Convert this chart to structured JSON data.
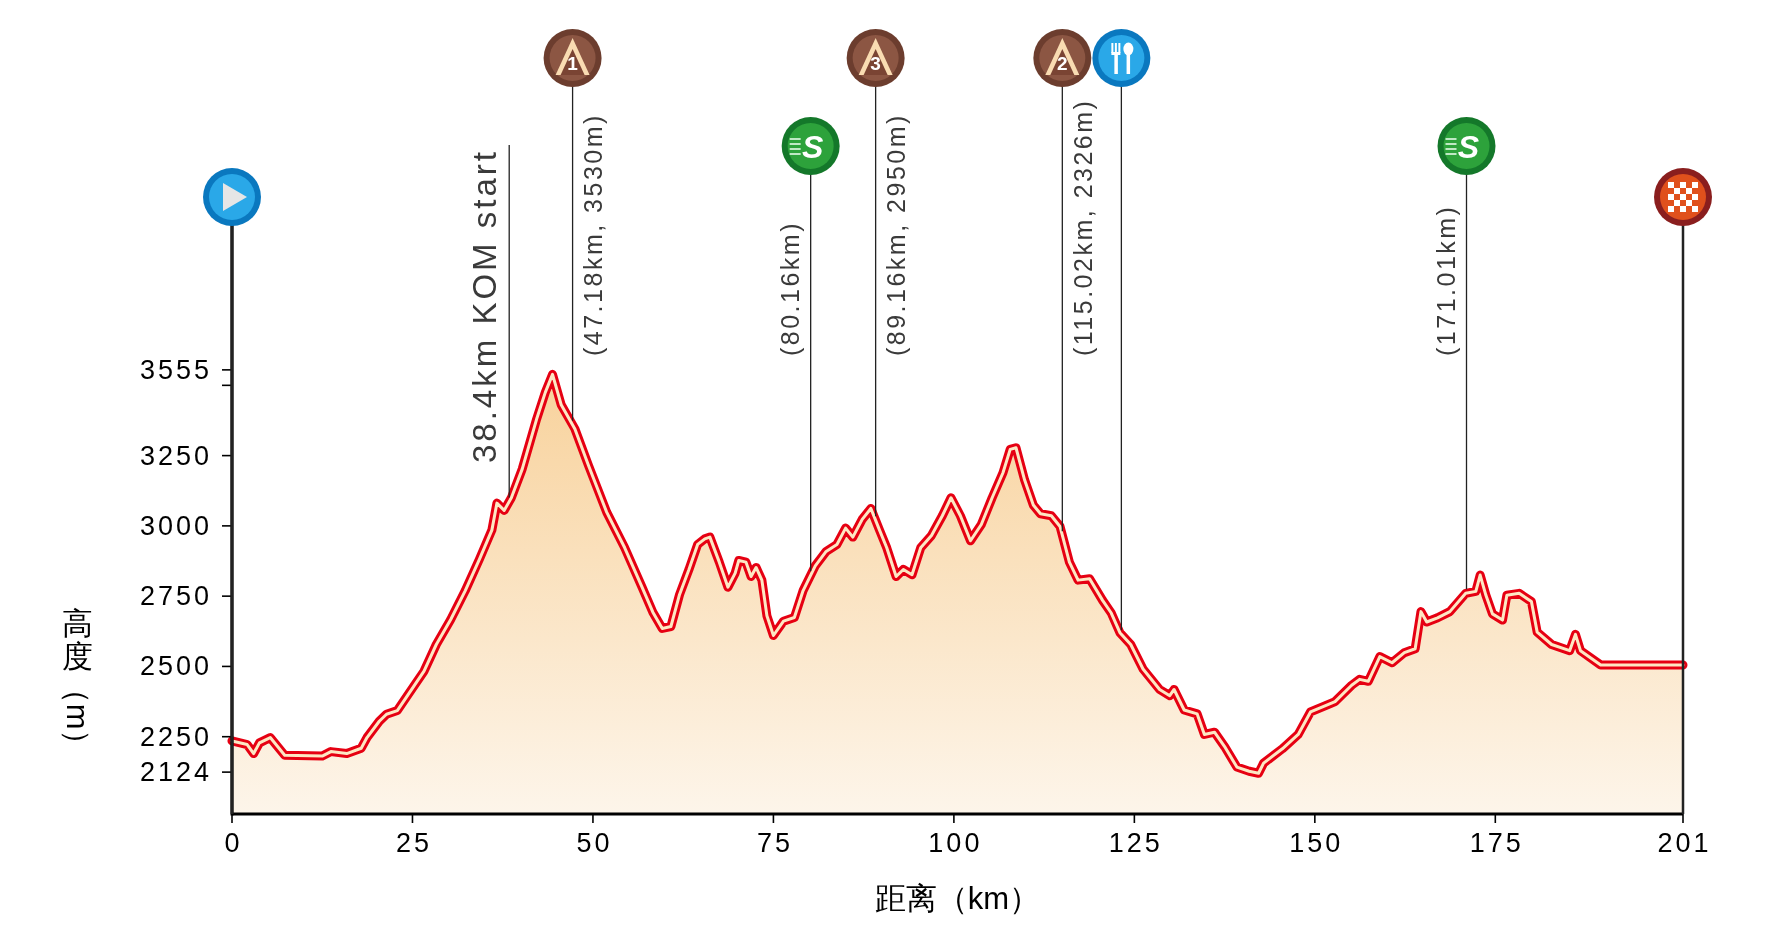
{
  "chart_data": {
    "type": "area",
    "xlabel": "距离（km）",
    "ylabel": "高度（m）",
    "x": [
      0,
      2.1,
      3.0,
      3.8,
      5.3,
      7.3,
      12.5,
      13.7,
      15.9,
      17.9,
      18.7,
      20.4,
      21.4,
      22.9,
      24.4,
      26.6,
      28.3,
      30.3,
      32.3,
      34.3,
      36.0,
      36.7,
      37.7,
      38.7,
      40.2,
      42.2,
      43.4,
      44.4,
      45.6,
      47.5,
      49.4,
      51.9,
      54.4,
      56.8,
      58.3,
      59.6,
      60.8,
      62.0,
      63.3,
      64.5,
      65.5,
      66.2,
      67.5,
      68.7,
      69.7,
      70.2,
      71.2,
      71.9,
      72.6,
      73.4,
      74.1,
      75.0,
      76.4,
      77.9,
      79.1,
      80.8,
      82.3,
      83.8,
      85.0,
      86.0,
      87.3,
      88.5,
      89.7,
      90.7,
      92.0,
      93.0,
      94.2,
      95.4,
      96.9,
      98.4,
      99.6,
      100.9,
      102.3,
      103.8,
      105.3,
      106.8,
      107.8,
      108.6,
      109.8,
      111.0,
      112.0,
      113.5,
      114.7,
      116.0,
      117.2,
      118.8,
      120.6,
      121.8,
      123.0,
      124.5,
      126.2,
      128.5,
      129.9,
      130.5,
      131.9,
      133.7,
      134.7,
      136.1,
      137.5,
      139.2,
      140.9,
      142.2,
      142.9,
      145.5,
      147.7,
      149.4,
      151.4,
      152.8,
      155.1,
      156.2,
      157.4,
      159.0,
      160.7,
      162.4,
      163.9,
      164.7,
      165.5,
      167.0,
      168.7,
      170.9,
      172.3,
      172.9,
      173.7,
      174.6,
      176.0,
      176.6,
      178.3,
      180.0,
      180.8,
      182.8,
      185.3,
      186.1,
      186.8,
      189.6,
      201
    ],
    "values": [
      2235,
      2222,
      2190,
      2228,
      2247,
      2184,
      2181,
      2197,
      2190,
      2209,
      2247,
      2305,
      2330,
      2343,
      2400,
      2483,
      2578,
      2667,
      2769,
      2883,
      2985,
      3081,
      3055,
      3100,
      3202,
      3380,
      3475,
      3539,
      3431,
      3345,
      3214,
      3049,
      2922,
      2782,
      2693,
      2635,
      2642,
      2756,
      2845,
      2934,
      2954,
      2960,
      2871,
      2782,
      2832,
      2877,
      2871,
      2820,
      2852,
      2807,
      2680,
      2610,
      2661,
      2674,
      2769,
      2858,
      2909,
      2934,
      2992,
      2960,
      3023,
      3062,
      2985,
      2922,
      2820,
      2845,
      2826,
      2922,
      2966,
      3036,
      3100,
      3036,
      2947,
      3005,
      3100,
      3189,
      3272,
      3278,
      3163,
      3074,
      3043,
      3036,
      2998,
      2871,
      2807,
      2812,
      2735,
      2690,
      2620,
      2578,
      2491,
      2418,
      2396,
      2418,
      2345,
      2331,
      2258,
      2266,
      2215,
      2142,
      2127,
      2120,
      2156,
      2207,
      2258,
      2338,
      2360,
      2375,
      2433,
      2454,
      2447,
      2535,
      2513,
      2549,
      2563,
      2695,
      2658,
      2673,
      2695,
      2760,
      2767,
      2825,
      2753,
      2687,
      2665,
      2753,
      2760,
      2731,
      2622,
      2578,
      2556,
      2614,
      2556,
      2505,
      2505
    ],
    "color": "#e60012",
    "xlim": [
      0,
      201
    ],
    "xticks": [
      0,
      25,
      50,
      75,
      100,
      125,
      150,
      175,
      201
    ],
    "ylim": [
      1975,
      4170
    ],
    "yticks": [
      2124,
      2250,
      2500,
      2750,
      3000,
      3250,
      {
        "value": 3500,
        "label": null
      },
      3555
    ],
    "ref_lines": [
      {
        "axis": "x",
        "value": 0
      },
      {
        "axis": "x",
        "value": 38.4,
        "label": "38.4km KOM start"
      },
      {
        "axis": "x",
        "value": 47.18,
        "label": "(47.18km, 3530m)"
      },
      {
        "axis": "x",
        "value": 80.16,
        "label": "(80.16km)"
      },
      {
        "axis": "x",
        "value": 89.16,
        "label": "(89.16km, 2950m)"
      },
      {
        "axis": "x",
        "value": 115.02,
        "label": "(115.02km, 2326m)"
      },
      {
        "axis": "x",
        "value": 123.2
      },
      {
        "axis": "x",
        "value": 171.01,
        "label": "(171.01km)"
      },
      {
        "axis": "x",
        "value": 201
      }
    ],
    "annotations": [
      "1",
      "S",
      "3",
      "2",
      "S"
    ]
  }
}
